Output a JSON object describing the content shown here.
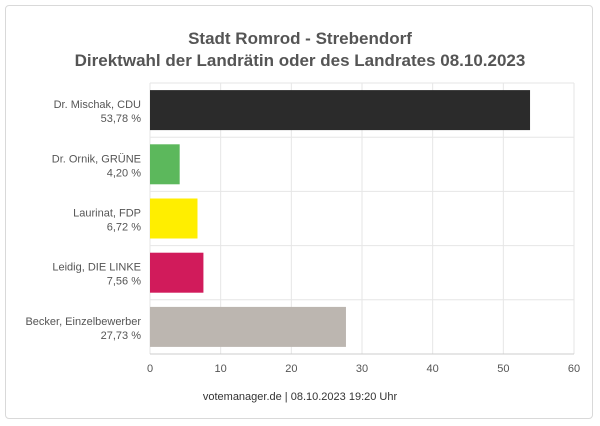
{
  "chart_data": {
    "type": "bar",
    "orientation": "horizontal",
    "title": "Stadt Romrod - Strebendorf",
    "subtitle": "Direktwahl der Landrätin oder des Landrates 08.10.2023",
    "categories": [
      {
        "name": "Dr. Mischak, CDU",
        "value_label": "53,78 %"
      },
      {
        "name": "Dr. Ornik, GRÜNE",
        "value_label": "4,20 %"
      },
      {
        "name": "Laurinat, FDP",
        "value_label": "6,72 %"
      },
      {
        "name": "Leidig, DIE LINKE",
        "value_label": "7,56 %"
      },
      {
        "name": "Becker, Einzelbewerber",
        "value_label": "27,73 %"
      }
    ],
    "values": [
      53.78,
      4.2,
      6.72,
      7.56,
      27.73
    ],
    "colors": [
      "#2b2b2b",
      "#5cb85c",
      "#ffee00",
      "#d11b5b",
      "#bcb6b0"
    ],
    "xlim": [
      0,
      60
    ],
    "xticks": [
      "0",
      "10",
      "20",
      "30",
      "40",
      "50",
      "60"
    ],
    "grid": true,
    "footer": "votemanager.de | 08.10.2023 19:20 Uhr"
  }
}
